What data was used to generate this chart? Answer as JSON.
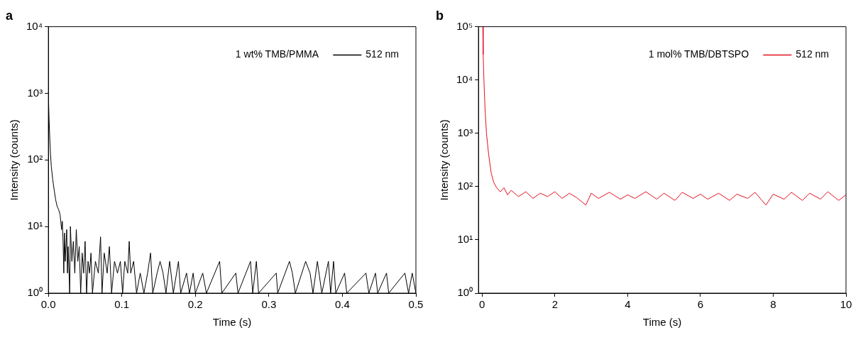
{
  "chart_data": [
    {
      "type": "line",
      "title": "a",
      "xlabel": "Time (s)",
      "ylabel": "Intensity (counts)",
      "legend_title": "1 wt% TMB/PMMA",
      "legend": "top right",
      "log": "y",
      "xlim": [
        0,
        0.5
      ],
      "xticks": [
        {
          "value": 0,
          "label": "0.0"
        },
        0.1,
        0.2,
        0.3,
        0.4,
        0.5
      ],
      "ylim": [
        1,
        10000
      ],
      "yticks": [
        {
          "value": 1,
          "label": "10⁰"
        },
        {
          "value": 10,
          "label": "10¹"
        },
        {
          "value": 100,
          "label": "10²"
        },
        {
          "value": 1000,
          "label": "10³"
        },
        {
          "value": 10000,
          "label": "10⁴"
        }
      ],
      "series": [
        {
          "name": "512 nm",
          "color": "#000000",
          "x": [
            0,
            0.001,
            0.002,
            0.003,
            0.004,
            0.006,
            0.008,
            0.01,
            0.012,
            0.014,
            0.016,
            0.018,
            0.019,
            0.02,
            0.021,
            0.022,
            0.023,
            0.025,
            0.026,
            0.027,
            0.029,
            0.03,
            0.032,
            0.034,
            0.036,
            0.038,
            0.04,
            0.042,
            0.044,
            0.046,
            0.048,
            0.05,
            0.052,
            0.054,
            0.056,
            0.058,
            0.06,
            0.064,
            0.068,
            0.071,
            0.073,
            0.076,
            0.08,
            0.083,
            0.086,
            0.09,
            0.094,
            0.098,
            0.101,
            0.104,
            0.108,
            0.11,
            0.112,
            0.116,
            0.12,
            0.125,
            0.13,
            0.135,
            0.139,
            0.142,
            0.148,
            0.152,
            0.156,
            0.16,
            0.165,
            0.17,
            0.177,
            0.18,
            0.188,
            0.192,
            0.197,
            0.2,
            0.21,
            0.215,
            0.233,
            0.236,
            0.255,
            0.258,
            0.275,
            0.278,
            0.283,
            0.286,
            0.31,
            0.312,
            0.328,
            0.332,
            0.336,
            0.35,
            0.356,
            0.36,
            0.366,
            0.372,
            0.381,
            0.384,
            0.388,
            0.391,
            0.403,
            0.406,
            0.432,
            0.436,
            0.445,
            0.448,
            0.46,
            0.463,
            0.485,
            0.49,
            0.495,
            0.5
          ],
          "values": [
            1000,
            400,
            200,
            120,
            80,
            50,
            35,
            25,
            20,
            18,
            15,
            9,
            12,
            6,
            2,
            8,
            3,
            9,
            2,
            5,
            1,
            10,
            3,
            6,
            2,
            9,
            3,
            5,
            1,
            4,
            2,
            6,
            1,
            3,
            2,
            4,
            1,
            3,
            2,
            7,
            1,
            4,
            2,
            5,
            1,
            3,
            2,
            3,
            1,
            3,
            2,
            6,
            2,
            3,
            1,
            2,
            1,
            2,
            4,
            1,
            2,
            3,
            2,
            1,
            3,
            1,
            3,
            1,
            2,
            1,
            2,
            1,
            2,
            1,
            3,
            1,
            2,
            1,
            3,
            1,
            3,
            1,
            2,
            1,
            3,
            2,
            1,
            3,
            2,
            1,
            3,
            1,
            3,
            1,
            3,
            1,
            2,
            1,
            2,
            1,
            2,
            1,
            2,
            1,
            2,
            1,
            2,
            1
          ]
        }
      ]
    },
    {
      "type": "line",
      "title": "b",
      "xlabel": "Time (s)",
      "ylabel": "Intensity (counts)",
      "legend_title": "1 mol% TMB/DBTSPO",
      "legend": "top right",
      "log": "y",
      "xlim": [
        -0.1,
        10
      ],
      "xticks": [
        0,
        2,
        4,
        6,
        8,
        10
      ],
      "ylim": [
        1,
        100000
      ],
      "yticks": [
        {
          "value": 1,
          "label": "10⁰"
        },
        {
          "value": 10,
          "label": "10¹"
        },
        {
          "value": 100,
          "label": "10²"
        },
        {
          "value": 1000,
          "label": "10³"
        },
        {
          "value": 10000,
          "label": "10⁴"
        },
        {
          "value": 100000,
          "label": "10⁵"
        }
      ],
      "series": [
        {
          "name": "512 nm",
          "color": "#e3101e",
          "x": [
            0.02,
            0.03,
            0.05,
            0.08,
            0.12,
            0.18,
            0.25,
            0.32,
            0.4,
            0.5,
            0.6,
            0.7,
            0.8,
            1.0,
            1.2,
            1.4,
            1.6,
            1.8,
            2.0,
            2.2,
            2.4,
            2.6,
            2.85,
            3.0,
            3.2,
            3.5,
            3.8,
            4.0,
            4.2,
            4.5,
            4.8,
            5.0,
            5.3,
            5.5,
            5.8,
            6.0,
            6.2,
            6.5,
            6.8,
            7.0,
            7.3,
            7.5,
            7.8,
            8.0,
            8.3,
            8.5,
            8.8,
            9.0,
            9.3,
            9.5,
            9.8,
            10.0
          ],
          "values": [
            100000,
            30000,
            10000,
            3000,
            1000,
            400,
            180,
            120,
            95,
            80,
            95,
            70,
            85,
            65,
            80,
            60,
            75,
            65,
            80,
            60,
            75,
            62,
            45,
            75,
            60,
            78,
            58,
            70,
            60,
            80,
            58,
            75,
            55,
            78,
            60,
            72,
            58,
            75,
            55,
            72,
            60,
            78,
            45,
            72,
            58,
            78,
            55,
            75,
            58,
            80,
            55,
            70
          ]
        }
      ]
    }
  ]
}
